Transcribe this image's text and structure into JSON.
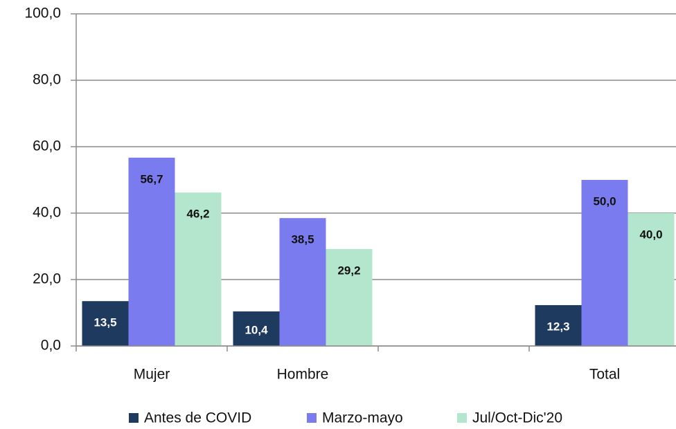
{
  "chart_data": {
    "type": "bar",
    "categories": [
      "Mujer",
      "Hombre",
      null,
      "Total"
    ],
    "series": [
      {
        "name": "Antes de COVID",
        "color": "#1f3a5f",
        "values": [
          13.5,
          10.4,
          null,
          12.3
        ],
        "value_labels": [
          "13,5",
          "10,4",
          null,
          "12,3"
        ]
      },
      {
        "name": "Marzo-mayo",
        "color": "#7b7bf0",
        "values": [
          56.7,
          38.5,
          null,
          50.0
        ],
        "value_labels": [
          "56,7",
          "38,5",
          null,
          "50,0"
        ]
      },
      {
        "name": "Jul/Oct-Dic'20",
        "color": "#b3e6cc",
        "values": [
          46.2,
          29.2,
          null,
          40.0
        ],
        "value_labels": [
          "46,2",
          "29,2",
          null,
          "40,0"
        ]
      }
    ],
    "ylim": [
      0,
      100
    ],
    "yticks": [
      {
        "value": 0,
        "label": "0,0"
      },
      {
        "value": 20,
        "label": "20,0"
      },
      {
        "value": 40,
        "label": "40,0"
      },
      {
        "value": 60,
        "label": "60,0"
      },
      {
        "value": 80,
        "label": "80,0"
      },
      {
        "value": 100,
        "label": "100,0"
      }
    ],
    "grid": true
  }
}
